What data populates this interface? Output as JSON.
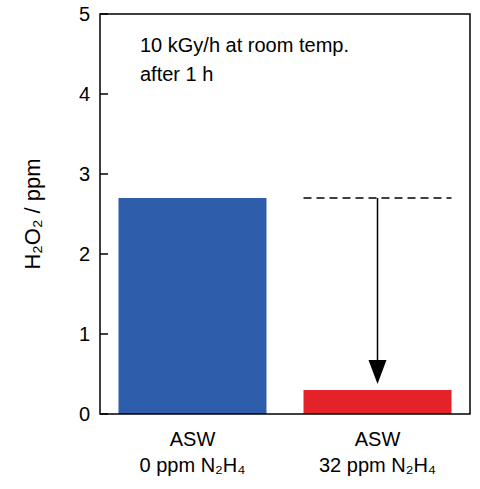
{
  "chart_data": {
    "type": "bar",
    "y_label": "H₂O₂ / ppm",
    "annotations": [
      "10 kGy/h at room temp.",
      "after 1 h"
    ],
    "categories": [
      "ASW\n0 ppm N₂H₄",
      "ASW\n32 ppm N₂H₄"
    ],
    "values": [
      2.7,
      0.3
    ],
    "colors": [
      "#2d5dab",
      "#e5222a"
    ],
    "ylim": [
      0,
      5
    ],
    "yticks": [
      0,
      1,
      2,
      3,
      4,
      5
    ],
    "grid": false
  }
}
